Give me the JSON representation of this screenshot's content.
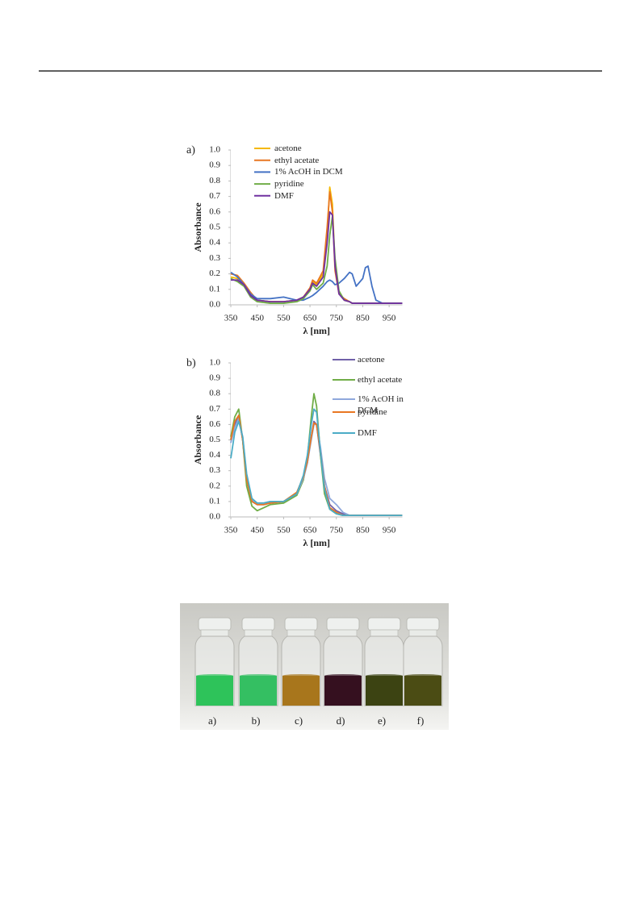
{
  "chart_data": [
    {
      "type": "line",
      "title": "a)",
      "y_label": "Absorbance",
      "x_label": "λ [nm]",
      "legend": "upper center",
      "xlim": [
        350,
        1000
      ],
      "xticks": [
        350,
        450,
        550,
        650,
        750,
        850,
        950
      ],
      "ylim": [
        0,
        1
      ],
      "yticks": [
        {
          "value": 0,
          "label": "0.0"
        },
        0.1,
        0.2,
        0.3,
        0.4,
        0.5,
        0.6,
        0.7,
        0.8,
        0.9,
        {
          "value": 1,
          "label": "1.0"
        }
      ],
      "x": [
        350,
        375,
        400,
        425,
        450,
        500,
        550,
        600,
        625,
        650,
        660,
        675,
        700,
        715,
        725,
        735,
        745,
        760,
        780,
        800,
        810,
        825,
        850,
        860,
        870,
        885,
        900,
        925,
        950,
        1000
      ],
      "series": [
        {
          "name": "acetone",
          "color": "#f5b800",
          "values": [
            0.18,
            0.17,
            0.13,
            0.07,
            0.03,
            0.02,
            0.02,
            0.03,
            0.05,
            0.1,
            0.15,
            0.13,
            0.2,
            0.45,
            0.76,
            0.65,
            0.25,
            0.08,
            0.03,
            0.02,
            0.01,
            0.01,
            0.01,
            0.01,
            0.01,
            0.01,
            0.01,
            0.01,
            0.01,
            0.01
          ]
        },
        {
          "name": "ethyl acetate",
          "color": "#e87722",
          "values": [
            0.2,
            0.19,
            0.14,
            0.08,
            0.03,
            0.02,
            0.02,
            0.03,
            0.05,
            0.11,
            0.16,
            0.14,
            0.22,
            0.5,
            0.73,
            0.6,
            0.22,
            0.07,
            0.04,
            0.02,
            0.01,
            0.01,
            0.01,
            0.01,
            0.01,
            0.01,
            0.01,
            0.01,
            0.01,
            0.01
          ]
        },
        {
          "name": "1% AcOH in DCM",
          "color": "#4472c4",
          "values": [
            0.21,
            0.18,
            0.13,
            0.07,
            0.04,
            0.04,
            0.05,
            0.03,
            0.03,
            0.05,
            0.06,
            0.08,
            0.12,
            0.15,
            0.16,
            0.15,
            0.13,
            0.14,
            0.17,
            0.21,
            0.2,
            0.12,
            0.17,
            0.24,
            0.25,
            0.12,
            0.03,
            0.01,
            0.01,
            0.01
          ]
        },
        {
          "name": "pyridine",
          "color": "#70ad47",
          "values": [
            0.17,
            0.15,
            0.12,
            0.05,
            0.02,
            0.01,
            0.01,
            0.02,
            0.04,
            0.09,
            0.13,
            0.1,
            0.14,
            0.25,
            0.45,
            0.57,
            0.3,
            0.09,
            0.03,
            0.02,
            0.01,
            0.01,
            0.01,
            0.01,
            0.01,
            0.01,
            0.01,
            0.01,
            0.01,
            0.01
          ]
        },
        {
          "name": "DMF",
          "color": "#7030a0",
          "values": [
            0.16,
            0.16,
            0.13,
            0.06,
            0.03,
            0.02,
            0.02,
            0.03,
            0.05,
            0.1,
            0.14,
            0.12,
            0.18,
            0.4,
            0.6,
            0.58,
            0.25,
            0.07,
            0.03,
            0.02,
            0.01,
            0.01,
            0.01,
            0.01,
            0.01,
            0.01,
            0.01,
            0.01,
            0.01,
            0.01
          ]
        }
      ]
    },
    {
      "type": "line",
      "title": "b)",
      "y_label": "Absorbance",
      "x_label": "λ [nm]",
      "legend": "right",
      "xlim": [
        350,
        1000
      ],
      "xticks": [
        350,
        450,
        550,
        650,
        750,
        850,
        950
      ],
      "ylim": [
        0,
        1
      ],
      "yticks": [
        {
          "value": 0,
          "label": "0.0"
        },
        0.1,
        0.2,
        0.3,
        0.4,
        0.5,
        0.6,
        0.7,
        0.8,
        0.9,
        {
          "value": 1,
          "label": "1.0"
        }
      ],
      "x": [
        350,
        365,
        380,
        395,
        410,
        430,
        450,
        475,
        500,
        550,
        600,
        625,
        640,
        655,
        665,
        675,
        690,
        705,
        725,
        750,
        775,
        800,
        850,
        900,
        950,
        1000
      ],
      "series": [
        {
          "name": "acetone",
          "color": "#7060a8",
          "values": [
            0.5,
            0.6,
            0.65,
            0.5,
            0.25,
            0.1,
            0.08,
            0.08,
            0.09,
            0.1,
            0.15,
            0.25,
            0.35,
            0.52,
            0.62,
            0.6,
            0.4,
            0.2,
            0.08,
            0.04,
            0.02,
            0.01,
            0.01,
            0.01,
            0.01,
            0.01
          ]
        },
        {
          "name": "ethyl acetate",
          "color": "#70ad47",
          "values": [
            0.52,
            0.65,
            0.7,
            0.5,
            0.2,
            0.07,
            0.04,
            0.06,
            0.08,
            0.09,
            0.14,
            0.24,
            0.38,
            0.65,
            0.8,
            0.72,
            0.4,
            0.15,
            0.05,
            0.02,
            0.01,
            0.01,
            0.01,
            0.01,
            0.01,
            0.01
          ]
        },
        {
          "name": "1% AcOH in DCM",
          "color": "#8fa8dc",
          "values": [
            0.48,
            0.58,
            0.64,
            0.52,
            0.26,
            0.11,
            0.09,
            0.09,
            0.1,
            0.1,
            0.15,
            0.25,
            0.35,
            0.5,
            0.6,
            0.6,
            0.45,
            0.25,
            0.12,
            0.08,
            0.03,
            0.01,
            0.01,
            0.01,
            0.01,
            0.01
          ]
        },
        {
          "name": "pyridine",
          "color": "#e87722",
          "values": [
            0.5,
            0.62,
            0.66,
            0.5,
            0.24,
            0.1,
            0.08,
            0.08,
            0.09,
            0.1,
            0.16,
            0.26,
            0.36,
            0.52,
            0.61,
            0.6,
            0.42,
            0.2,
            0.06,
            0.03,
            0.01,
            0.01,
            0.01,
            0.01,
            0.01,
            0.01
          ]
        },
        {
          "name": "DMF",
          "color": "#4bacc6",
          "values": [
            0.38,
            0.55,
            0.62,
            0.52,
            0.28,
            0.12,
            0.09,
            0.09,
            0.1,
            0.1,
            0.15,
            0.27,
            0.4,
            0.6,
            0.7,
            0.68,
            0.42,
            0.18,
            0.05,
            0.02,
            0.01,
            0.01,
            0.01,
            0.01,
            0.01,
            0.01
          ]
        }
      ]
    }
  ],
  "photo": {
    "labels": [
      "a)",
      "b)",
      "c)",
      "d)",
      "e)",
      "f)"
    ]
  }
}
